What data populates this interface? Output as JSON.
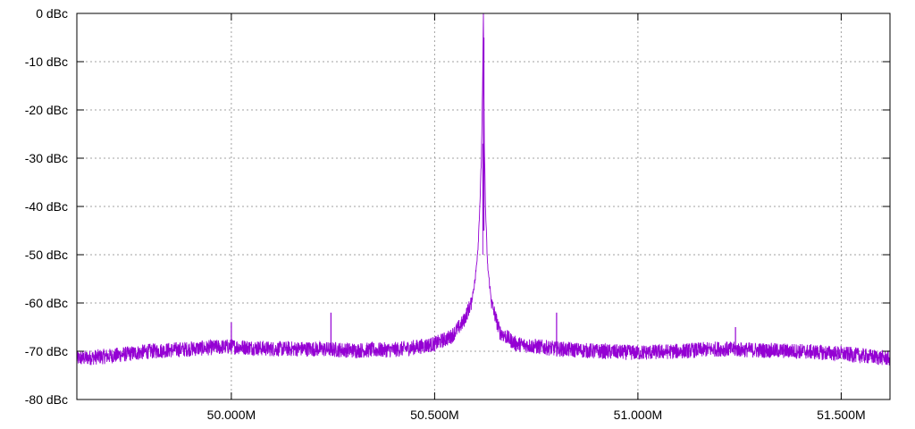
{
  "chart_data": {
    "type": "line",
    "title": "",
    "xlabel": "",
    "ylabel": "",
    "xlim": [
      49620000,
      51620000
    ],
    "ylim": [
      -80,
      0
    ],
    "grid": true,
    "legend": "none",
    "x_ticks": [
      {
        "value": 50000000,
        "label": "50.000M"
      },
      {
        "value": 50500000,
        "label": "50.500M"
      },
      {
        "value": 51000000,
        "label": "51.000M"
      },
      {
        "value": 51500000,
        "label": "51.500M"
      }
    ],
    "y_ticks": [
      {
        "value": 0,
        "label": "0 dBc"
      },
      {
        "value": -10,
        "label": "-10 dBc"
      },
      {
        "value": -20,
        "label": "-20 dBc"
      },
      {
        "value": -30,
        "label": "-30 dBc"
      },
      {
        "value": -40,
        "label": "-40 dBc"
      },
      {
        "value": -50,
        "label": "-50 dBc"
      },
      {
        "value": -60,
        "label": "-60 dBc"
      },
      {
        "value": -70,
        "label": "-70 dBc"
      },
      {
        "value": -80,
        "label": "-80 dBc"
      }
    ],
    "series": [
      {
        "color": "#9400d3",
        "x": [
          49620000,
          49700000,
          49800000,
          49900000,
          50000000,
          50100000,
          50200000,
          50300000,
          50400000,
          50450000,
          50500000,
          50540000,
          50570000,
          50590000,
          50600000,
          50607000,
          50612000,
          50615000,
          50618000,
          50620000,
          50622000,
          50625000,
          50630000,
          50640000,
          50660000,
          50700000,
          50800000,
          50900000,
          51000000,
          51100000,
          51200000,
          51300000,
          51400000,
          51500000,
          51620000
        ],
        "y": [
          -71.5,
          -71,
          -70,
          -69.5,
          -69,
          -69.5,
          -69.5,
          -69.8,
          -69.7,
          -69.2,
          -68.5,
          -67,
          -64,
          -60,
          -55,
          -48,
          -38,
          -30,
          -15,
          0,
          -25,
          -40,
          -52,
          -60,
          -66,
          -68.5,
          -69.5,
          -70,
          -70.3,
          -70,
          -69.5,
          -69.8,
          -70,
          -70.5,
          -71.5
        ]
      }
    ],
    "spurs": [
      {
        "x": 50000000,
        "y": -64
      },
      {
        "x": 50245000,
        "y": -62
      },
      {
        "x": 50800000,
        "y": -62
      },
      {
        "x": 51240000,
        "y": -65
      }
    ]
  }
}
